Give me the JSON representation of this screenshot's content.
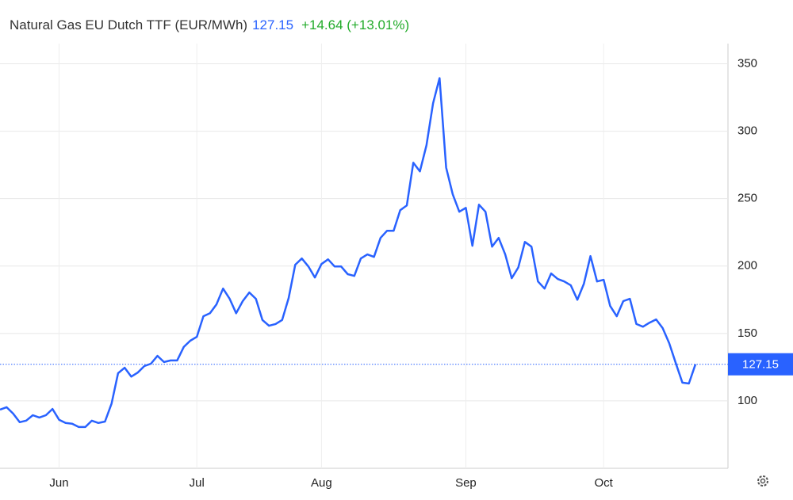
{
  "header": {
    "title": "Natural Gas EU Dutch TTF (EUR/MWh)",
    "price": "127.15",
    "change": "+14.64 (+13.01%)"
  },
  "chart_data": {
    "type": "line",
    "categories": [
      null,
      null,
      null,
      null,
      null,
      null,
      null,
      null,
      null,
      "Jun",
      null,
      null,
      null,
      null,
      null,
      null,
      null,
      null,
      null,
      null,
      null,
      null,
      null,
      null,
      null,
      null,
      null,
      null,
      null,
      null,
      "Jul",
      null,
      null,
      null,
      null,
      null,
      null,
      null,
      null,
      null,
      null,
      null,
      null,
      null,
      null,
      null,
      null,
      null,
      null,
      "Aug",
      null,
      null,
      null,
      null,
      null,
      null,
      null,
      null,
      null,
      null,
      null,
      null,
      null,
      null,
      null,
      null,
      null,
      null,
      null,
      null,
      null,
      "Sep",
      null,
      null,
      null,
      null,
      null,
      null,
      null,
      null,
      null,
      null,
      null,
      null,
      null,
      null,
      null,
      null,
      null,
      null,
      null,
      null,
      "Oct",
      null,
      null,
      null,
      null,
      null,
      null,
      null,
      null,
      null,
      null,
      null,
      null,
      null,
      null
    ],
    "series": [
      {
        "name": "Natural Gas EU Dutch TTF",
        "color": "#2962ff",
        "values": [
          93.5,
          95.3,
          90.6,
          84.2,
          85.4,
          89.4,
          87.7,
          89.4,
          94,
          86,
          83.6,
          83,
          80.6,
          80.6,
          85.3,
          83.6,
          84.7,
          98,
          120.5,
          124.6,
          118,
          121,
          125.8,
          127.6,
          133.4,
          128.8,
          130,
          130,
          140,
          144.6,
          147.5,
          162.8,
          165,
          171.6,
          183.3,
          175.7,
          165,
          174,
          180.4,
          175.7,
          160,
          155.7,
          157,
          160,
          176.3,
          201,
          205.6,
          199.7,
          191.5,
          201.5,
          205,
          199.7,
          199.7,
          194,
          192.7,
          205.6,
          208.6,
          206.8,
          220.9,
          226.2,
          226.2,
          241.4,
          245,
          276.6,
          270.2,
          289.6,
          320.7,
          339.4,
          273,
          253.2,
          240.3,
          243.2,
          215,
          245.5,
          240.3,
          214.4,
          220.9,
          208.6,
          191,
          199,
          217.9,
          214.4,
          188.6,
          183.3,
          194.5,
          190.4,
          188.6,
          185.7,
          175,
          186.9,
          207.4,
          188.6,
          189.8,
          170.4,
          162.8,
          174,
          175.7,
          157,
          155,
          158,
          160.4,
          154,
          142.8,
          128,
          113.5,
          112.9,
          127.15
        ]
      }
    ],
    "ylim": [
      50,
      365
    ],
    "yticks": [
      100,
      150,
      200,
      250,
      300,
      350
    ],
    "grid": true
  }
}
